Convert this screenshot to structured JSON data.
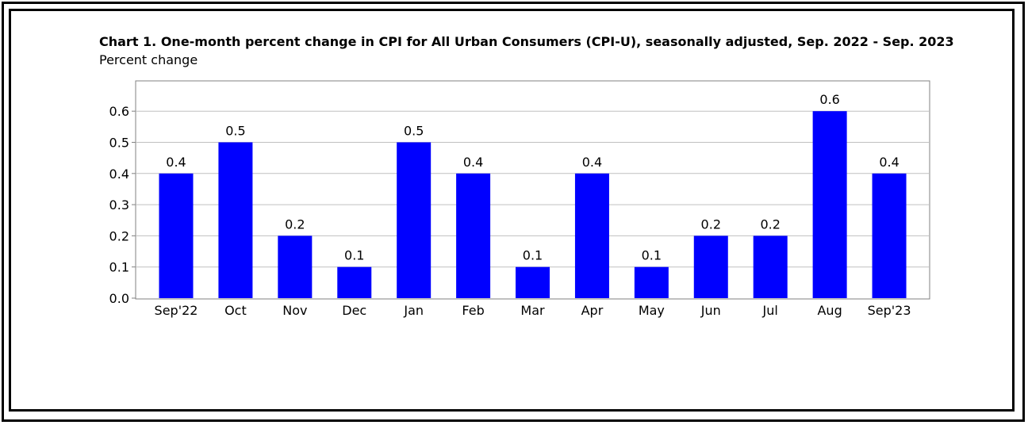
{
  "chart_data": {
    "type": "bar",
    "title": "Chart 1. One-month percent change in CPI for All Urban Consumers (CPI-U), seasonally adjusted, Sep. 2022 - Sep. 2023",
    "ylabel": "Percent change",
    "xlabel": "",
    "categories": [
      "Sep'22",
      "Oct",
      "Nov",
      "Dec",
      "Jan",
      "Feb",
      "Mar",
      "Apr",
      "May",
      "Jun",
      "Jul",
      "Aug",
      "Sep'23"
    ],
    "values": [
      0.4,
      0.5,
      0.2,
      0.1,
      0.5,
      0.4,
      0.1,
      0.4,
      0.1,
      0.2,
      0.2,
      0.6,
      0.4
    ],
    "value_labels": [
      "0.4",
      "0.5",
      "0.2",
      "0.1",
      "0.5",
      "0.4",
      "0.1",
      "0.4",
      "0.1",
      "0.2",
      "0.2",
      "0.6",
      "0.4"
    ],
    "yticks": [
      0.0,
      0.1,
      0.2,
      0.3,
      0.4,
      0.5,
      0.6
    ],
    "ytick_labels": [
      "0.0",
      "0.1",
      "0.2",
      "0.3",
      "0.4",
      "0.5",
      "0.6"
    ],
    "ylim": [
      0,
      0.7
    ],
    "grid": true,
    "bar_color": "#0000ff",
    "grid_color": "#c0c0c0"
  }
}
